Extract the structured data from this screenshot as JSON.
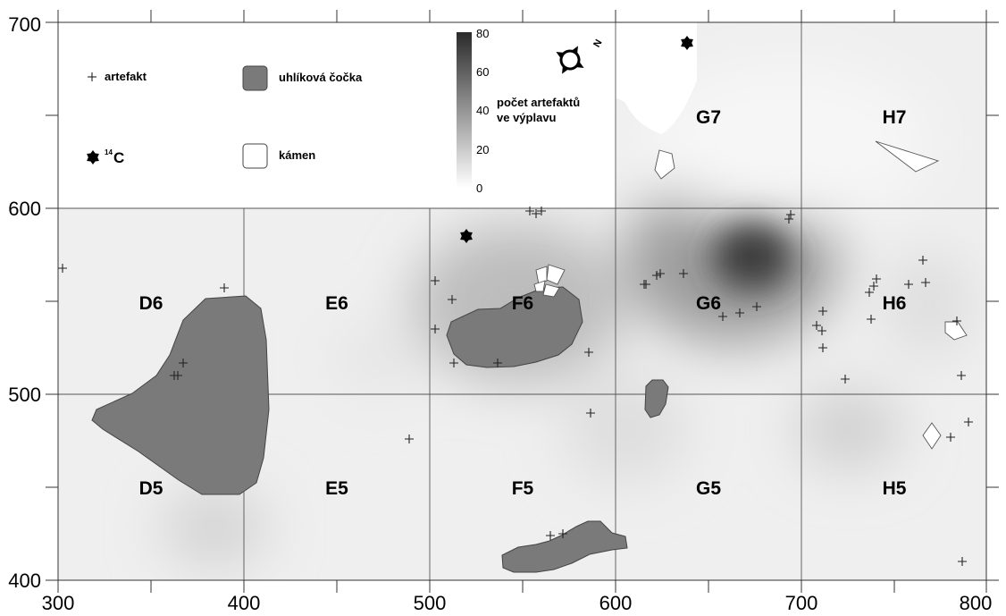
{
  "map": {
    "x_ticks": [
      "300",
      "400",
      "500",
      "600",
      "700",
      "800"
    ],
    "y_ticks": [
      "400",
      "500",
      "600",
      "700"
    ],
    "grid_labels": [
      "D6",
      "E6",
      "F6",
      "G6",
      "H6",
      "D5",
      "E5",
      "F5",
      "G5",
      "H5",
      "G7",
      "H7"
    ]
  },
  "legend": {
    "artefakt": "artefakt",
    "coal": "uhlíková čočka",
    "c14_sup": "14",
    "c14_base": "C",
    "stone": "kámen",
    "colorbar_title_1": "počet artefaktů",
    "colorbar_title_2": "ve výplavu",
    "colorbar_ticks": [
      "80",
      "60",
      "40",
      "20",
      "0"
    ],
    "north": "N"
  },
  "colors": {
    "background": "#ffffff",
    "coal_fill": "#7a7a7a",
    "coal_stroke": "#444444",
    "grid_line": "#555555"
  }
}
